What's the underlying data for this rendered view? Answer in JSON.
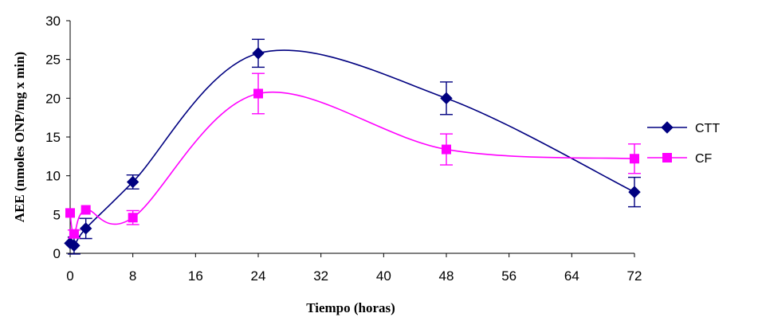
{
  "chart_data": {
    "type": "line",
    "xlabel": "Tiempo (horas)",
    "ylabel": "AEE (nmoles ONP/mg x min)",
    "xlim": [
      0,
      72
    ],
    "ylim": [
      0,
      30
    ],
    "x_ticks": [
      0,
      8,
      16,
      24,
      32,
      40,
      48,
      56,
      64,
      72
    ],
    "y_ticks": [
      0,
      5,
      10,
      15,
      20,
      25,
      30
    ],
    "grid": false,
    "legend_position": "right",
    "smoothed": true,
    "series": [
      {
        "name": "CTT",
        "color": "#000080",
        "marker": "diamond",
        "points": [
          {
            "x": 0,
            "y": 1.3,
            "err": 0
          },
          {
            "x": 0.5,
            "y": 1.0,
            "err": 1.1
          },
          {
            "x": 2,
            "y": 3.2,
            "err": 1.3
          },
          {
            "x": 8,
            "y": 9.2,
            "err": 0.9
          },
          {
            "x": 24,
            "y": 25.8,
            "err": 1.8
          },
          {
            "x": 48,
            "y": 20.0,
            "err": 2.1
          },
          {
            "x": 72,
            "y": 7.9,
            "err": 1.9
          }
        ]
      },
      {
        "name": "CF",
        "color": "#ff00ff",
        "marker": "square",
        "points": [
          {
            "x": 0,
            "y": 5.2,
            "err": 0
          },
          {
            "x": 0.5,
            "y": 2.5,
            "err": 0.5
          },
          {
            "x": 2,
            "y": 5.6,
            "err": 0
          },
          {
            "x": 8,
            "y": 4.6,
            "err": 0.9
          },
          {
            "x": 24,
            "y": 20.6,
            "err": 2.6
          },
          {
            "x": 48,
            "y": 13.4,
            "err": 2.0
          },
          {
            "x": 72,
            "y": 12.2,
            "err": 1.9
          }
        ]
      }
    ]
  }
}
